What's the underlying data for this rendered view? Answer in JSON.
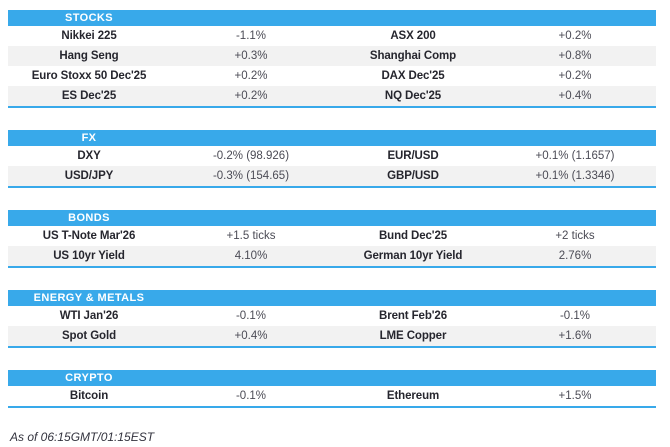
{
  "colors": {
    "accent": "#38a9ea",
    "row_alt": "#f2f2f2",
    "header_text": "#ffffff",
    "name_text": "#26262e",
    "value_text": "#4b4b55"
  },
  "chart_data": [
    {
      "type": "table",
      "title": "STOCKS",
      "rows": [
        [
          "Nikkei 225",
          "-1.1%",
          "ASX 200",
          "+0.2%"
        ],
        [
          "Hang Seng",
          "+0.3%",
          "Shanghai Comp",
          "+0.8%"
        ],
        [
          "Euro Stoxx 50 Dec'25",
          "+0.2%",
          "DAX Dec'25",
          "+0.2%"
        ],
        [
          "ES Dec'25",
          "+0.2%",
          "NQ Dec'25",
          "+0.4%"
        ]
      ]
    },
    {
      "type": "table",
      "title": "FX",
      "rows": [
        [
          "DXY",
          "-0.2% (98.926)",
          "EUR/USD",
          "+0.1% (1.1657)"
        ],
        [
          "USD/JPY",
          "-0.3% (154.65)",
          "GBP/USD",
          "+0.1% (1.3346)"
        ]
      ]
    },
    {
      "type": "table",
      "title": "BONDS",
      "rows": [
        [
          "US T-Note Mar'26",
          "+1.5 ticks",
          "Bund Dec'25",
          "+2 ticks"
        ],
        [
          "US 10yr Yield",
          "4.10%",
          "German 10yr Yield",
          "2.76%"
        ]
      ]
    },
    {
      "type": "table",
      "title": "ENERGY & METALS",
      "rows": [
        [
          "WTI Jan'26",
          "-0.1%",
          "Brent Feb'26",
          "-0.1%"
        ],
        [
          "Spot Gold",
          "+0.4%",
          "LME Copper",
          "+1.6%"
        ]
      ]
    },
    {
      "type": "table",
      "title": "CRYPTO",
      "rows": [
        [
          "Bitcoin",
          "-0.1%",
          "Ethereum",
          "+1.5%"
        ]
      ]
    }
  ],
  "footer": {
    "as_of": "As of 06:15GMT/01:15EST"
  }
}
